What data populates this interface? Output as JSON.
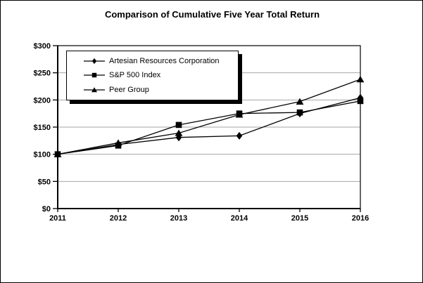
{
  "frame": {
    "background": "#ffffff",
    "border_color": "#000000"
  },
  "chart_data": {
    "type": "line",
    "title": "Comparison of Cumulative Five Year Total Return",
    "categories": [
      "2011",
      "2012",
      "2013",
      "2014",
      "2015",
      "2016"
    ],
    "xlabel": "",
    "ylabel": "",
    "ylim": [
      0,
      300
    ],
    "grid": true,
    "gridline_color": "#a6a6a6",
    "axis_color": "#000000",
    "y_ticks": [
      {
        "value": 0,
        "label": "$0"
      },
      {
        "value": 50,
        "label": "$50"
      },
      {
        "value": 100,
        "label": "$100"
      },
      {
        "value": 150,
        "label": "$150"
      },
      {
        "value": 200,
        "label": "$200"
      },
      {
        "value": 250,
        "label": "$250"
      },
      {
        "value": 300,
        "label": "$300"
      }
    ],
    "series": [
      {
        "name": "Artesian Resources Corporation",
        "marker": "diamond",
        "color": "#000000",
        "values": [
          100,
          118,
          131,
          134,
          175,
          204
        ]
      },
      {
        "name": "S&P 500 Index",
        "marker": "square",
        "color": "#000000",
        "values": [
          100,
          116,
          154,
          175,
          177,
          198
        ]
      },
      {
        "name": "Peer Group",
        "marker": "triangle",
        "color": "#000000",
        "values": [
          100,
          121,
          139,
          173,
          197,
          238
        ]
      }
    ],
    "legend_position": "top-left-inside"
  }
}
